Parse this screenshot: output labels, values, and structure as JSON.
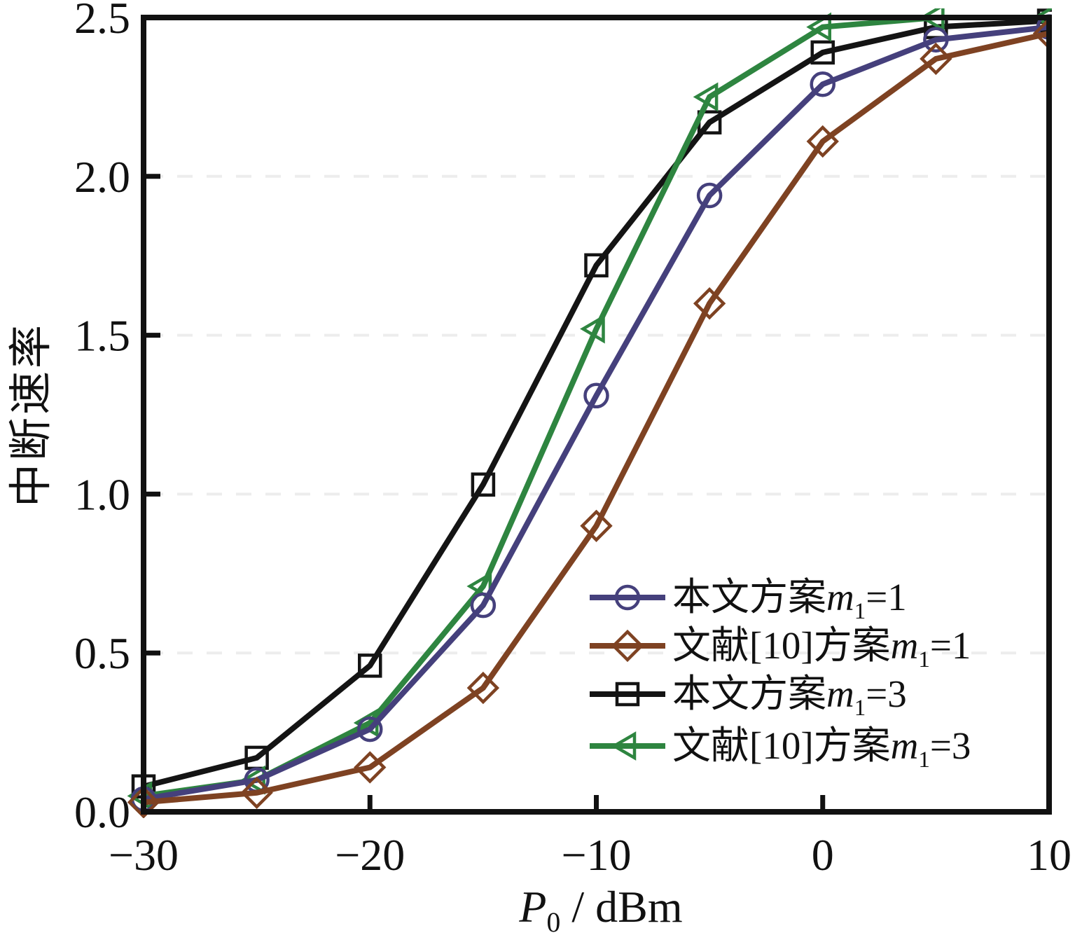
{
  "figure": {
    "background": "#ffffff",
    "frame_color": "#111111"
  },
  "chart_data": {
    "type": "line",
    "title": "",
    "xlabel": {
      "var": "P",
      "sub": "0",
      "rest": " / dBm"
    },
    "ylabel": "中断速率",
    "xlim": [
      -30,
      10
    ],
    "ylim": [
      0,
      2.5
    ],
    "x": [
      -30,
      -25,
      -20,
      -15,
      -10,
      -5,
      0,
      5,
      10
    ],
    "x_major_ticks": [
      -30,
      -20,
      -10,
      0,
      10
    ],
    "x_tick_labels": [
      "−30",
      "−20",
      "−10",
      "0",
      "10"
    ],
    "y_ticks": [
      0,
      0.5,
      1.0,
      1.5,
      2.0,
      2.5
    ],
    "y_tick_labels": [
      "0.0",
      "0.5",
      "1.0",
      "1.5",
      "2.0",
      "2.5"
    ],
    "grid": {
      "horizontal": true,
      "style": "dashed",
      "color": "#ededed",
      "at": [
        0.5,
        1.0,
        1.5,
        2.0
      ]
    },
    "legend_position": "inside lower-right",
    "series": [
      {
        "name": "本文方案m1=1",
        "legend": {
          "pre": "本文方案",
          "var": "m",
          "sub": "1",
          "post": "=1"
        },
        "marker": "circle",
        "color": "#45407c",
        "values": [
          0.04,
          0.1,
          0.26,
          0.65,
          1.31,
          1.94,
          2.29,
          2.43,
          2.47
        ]
      },
      {
        "name": "文献[10]方案m1=1",
        "legend": {
          "pre": "文献[10]方案",
          "var": "m",
          "sub": "1",
          "post": "=1"
        },
        "marker": "diamond",
        "color": "#7e4222",
        "values": [
          0.03,
          0.06,
          0.14,
          0.39,
          0.9,
          1.6,
          2.11,
          2.37,
          2.45
        ]
      },
      {
        "name": "本文方案m1=3",
        "legend": {
          "pre": "本文方案",
          "var": "m",
          "sub": "1",
          "post": "=3"
        },
        "marker": "square",
        "color": "#141414",
        "values": [
          0.08,
          0.17,
          0.46,
          1.03,
          1.72,
          2.17,
          2.39,
          2.47,
          2.49
        ]
      },
      {
        "name": "文献[10]方案m1=3",
        "legend": {
          "pre": "文献[10]方案",
          "var": "m",
          "sub": "1",
          "post": "=3"
        },
        "marker": "triangle-left",
        "color": "#2e8540",
        "values": [
          0.05,
          0.1,
          0.28,
          0.71,
          1.52,
          2.25,
          2.47,
          2.5,
          2.5
        ]
      }
    ]
  }
}
